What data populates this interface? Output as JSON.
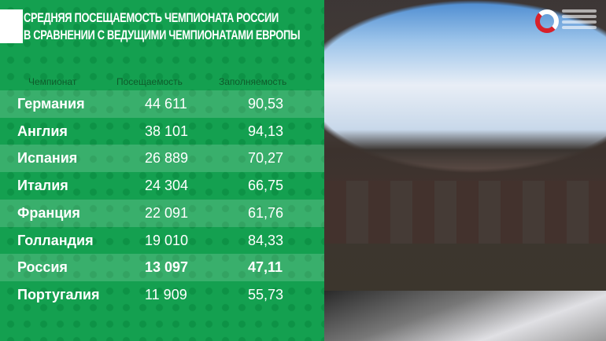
{
  "title": {
    "line1": "СРЕДНЯЯ ПОСЕЩАЕМОСТЬ ЧЕМПИОНАТА РОССИИ",
    "line2": "В СРАВНЕНИИ С ВЕДУЩИМИ ЧЕМПИОНАТАМИ ЕВРОПЫ"
  },
  "table": {
    "headers": [
      "Чемпионат",
      "Посещаемость",
      "Заполняемость"
    ],
    "rows": [
      {
        "league": "Германия",
        "attendance": "44 611",
        "fill": "90,53"
      },
      {
        "league": "Англия",
        "attendance": "38 101",
        "fill": "94,13"
      },
      {
        "league": "Испания",
        "attendance": "26 889",
        "fill": "70,27"
      },
      {
        "league": "Италия",
        "attendance": "24 304",
        "fill": "66,75"
      },
      {
        "league": "Франция",
        "attendance": "22 091",
        "fill": "61,76"
      },
      {
        "league": "Голландия",
        "attendance": "19 010",
        "fill": "84,33"
      },
      {
        "league": "Россия",
        "attendance": "13 097",
        "fill": "47,11",
        "highlighted": true
      },
      {
        "league": "Португалия",
        "attendance": "11 909",
        "fill": "55,73"
      }
    ]
  },
  "colors": {
    "panel": "#14a050",
    "logo_red": "#d8202a"
  }
}
